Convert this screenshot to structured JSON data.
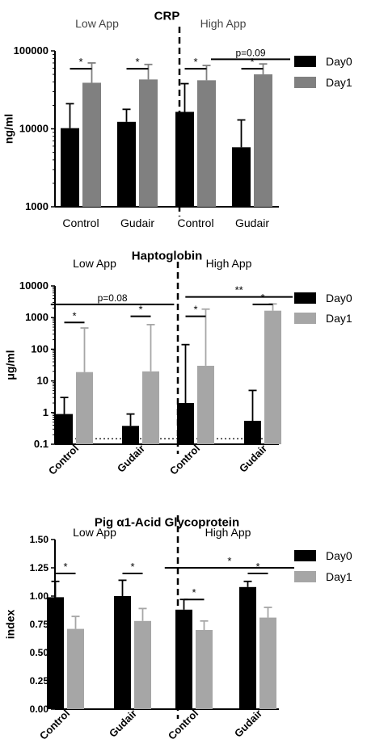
{
  "colors": {
    "day0": "#000000",
    "day1_crp": "#808080",
    "day1_other": "#a6a6a6",
    "axis": "#000000"
  },
  "chart_data": [
    {
      "type": "bar",
      "title": "CRP",
      "ylabel": "ng/ml",
      "yscale": "log",
      "ylim": [
        1000,
        100000
      ],
      "yticks": [
        "1000",
        "10000",
        "100000"
      ],
      "categories": [
        "Control",
        "Gudair",
        "Control",
        "Gudair"
      ],
      "group_labels": [
        "Low App",
        "High App"
      ],
      "legend": {
        "position": "right",
        "entries": [
          "Day0",
          "Day1"
        ]
      },
      "series": [
        {
          "name": "Day0",
          "values": [
            10200,
            12300,
            16500,
            5800
          ],
          "errors_upper": [
            21000,
            17800,
            38000,
            13000
          ]
        },
        {
          "name": "Day1",
          "values": [
            39000,
            43000,
            42000,
            50000
          ],
          "errors_upper": [
            70000,
            67000,
            65000,
            68000
          ]
        }
      ],
      "annotations": [
        "*",
        "*",
        "*",
        "p=0.09",
        "*"
      ]
    },
    {
      "type": "bar",
      "title": "Haptoglobin",
      "ylabel": "μg/ml",
      "yscale": "log",
      "ylim": [
        0.1,
        10000
      ],
      "yticks": [
        "0.1",
        "1",
        "10",
        "100",
        "1000",
        "10000"
      ],
      "categories": [
        "Control",
        "Gudair",
        "Control",
        "Gudair"
      ],
      "group_labels": [
        "Low  App",
        "High  App"
      ],
      "legend": {
        "position": "right",
        "entries": [
          "Day0",
          "Day1"
        ]
      },
      "series": [
        {
          "name": "Day0",
          "values": [
            0.9,
            0.38,
            2.0,
            0.55
          ],
          "errors_upper": [
            3.0,
            0.9,
            140,
            5.0
          ]
        },
        {
          "name": "Day1",
          "values": [
            19,
            20,
            30,
            1650
          ],
          "errors_upper": [
            470,
            600,
            1850,
            2700
          ]
        }
      ],
      "annotations": [
        "p=0.08",
        "*",
        "*",
        "*",
        "**",
        "*"
      ]
    },
    {
      "type": "bar",
      "title": "Pig α1-Acid Glycoprotein",
      "ylabel": "index",
      "ylim": [
        0,
        1.5
      ],
      "yticks": [
        "0.00",
        "0.25",
        "0.50",
        "0.75",
        "1.00",
        "1.25",
        "1.50"
      ],
      "categories": [
        "Control",
        "Gudair",
        "Control",
        "Gudair"
      ],
      "group_labels": [
        "Low  App",
        "High  App"
      ],
      "legend": {
        "position": "right",
        "entries": [
          "Day0",
          "Day1"
        ]
      },
      "series": [
        {
          "name": "Day0",
          "values": [
            0.99,
            1.0,
            0.88,
            1.08
          ],
          "errors_upper": [
            1.13,
            1.14,
            0.97,
            1.13
          ]
        },
        {
          "name": "Day1",
          "values": [
            0.71,
            0.78,
            0.7,
            0.81
          ],
          "errors_upper": [
            0.82,
            0.89,
            0.78,
            0.9
          ]
        }
      ],
      "annotations": [
        "*",
        "*",
        "*",
        "*",
        "*"
      ]
    }
  ]
}
